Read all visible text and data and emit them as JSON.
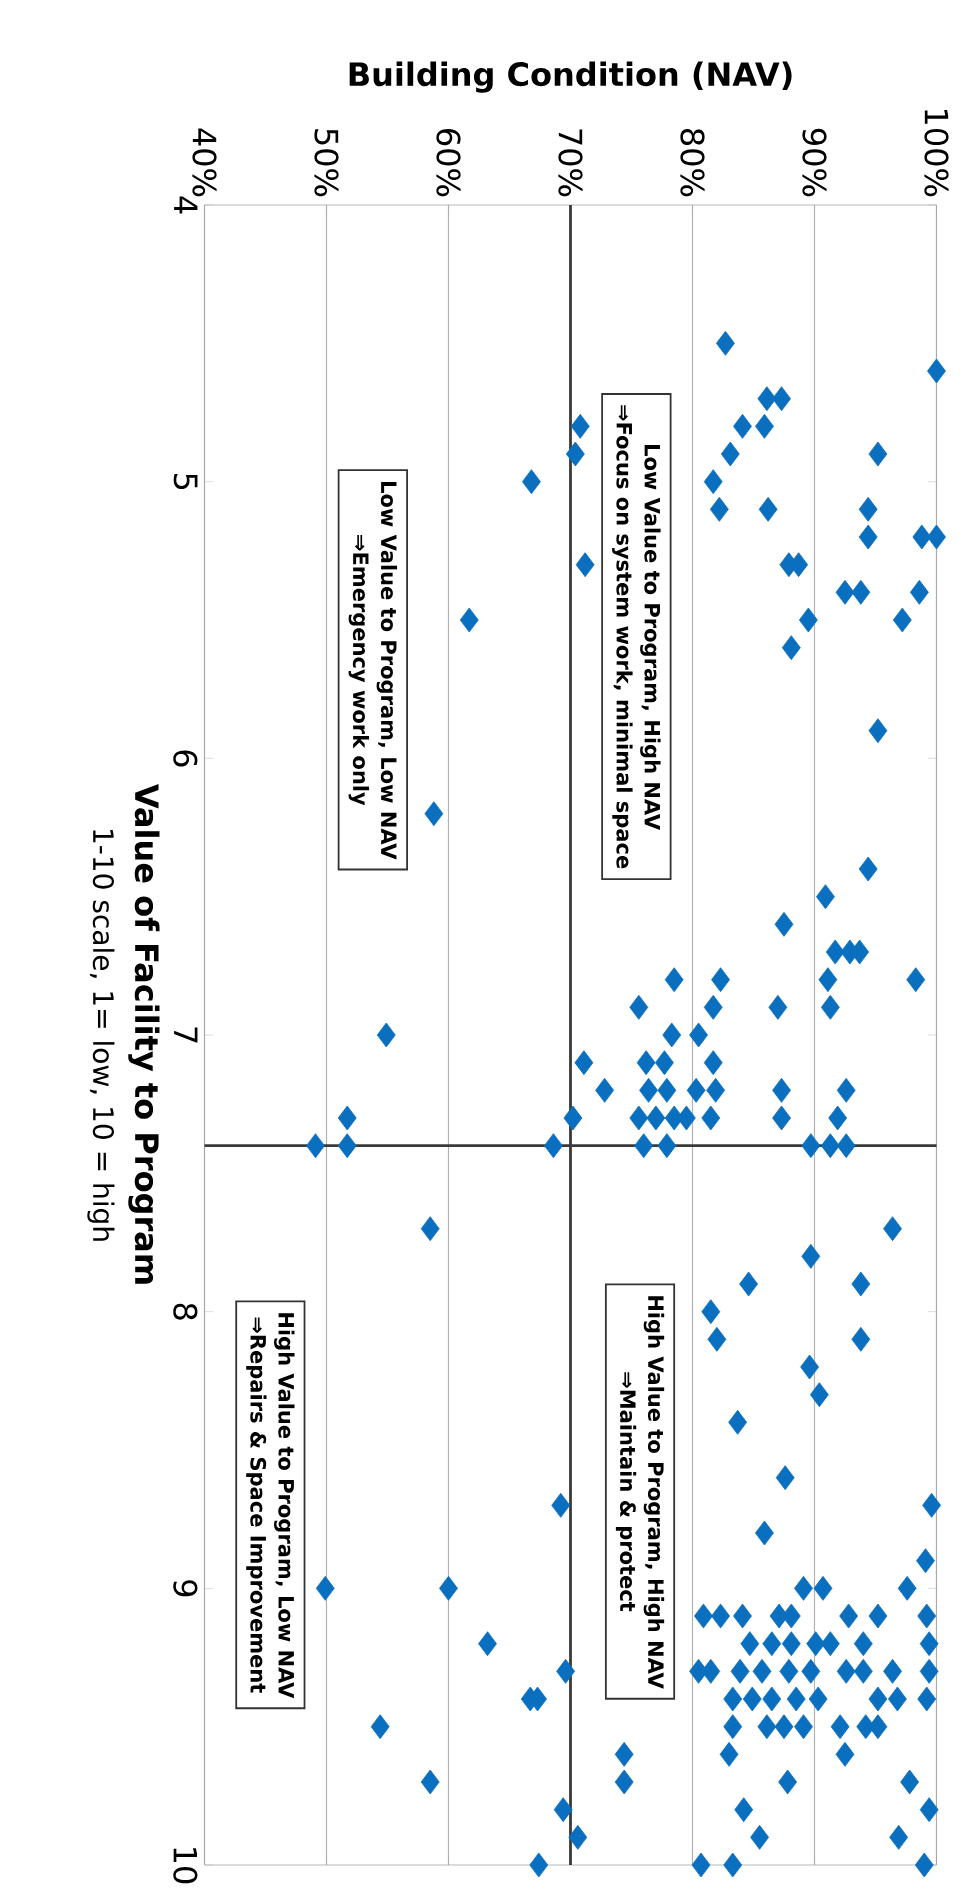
{
  "chart_data": {
    "type": "scatter",
    "xlabel": "Building Condition (NAV)",
    "ylabel": "Value of Facility to Program",
    "values": [
      4.5,
      4.6,
      4.7,
      4.7,
      4.8,
      4.8,
      4.8,
      4.9,
      4.9,
      4.9,
      5.0,
      5.0,
      5.1,
      5.1,
      5.1,
      5.2,
      5.2,
      5.2,
      5.3,
      5.3,
      5.3,
      5.4,
      5.4,
      5.4,
      5.5,
      5.5,
      5.5,
      5.6,
      5.9,
      6.2,
      6.4,
      6.5,
      6.6,
      6.7,
      6.7,
      6.7,
      6.8,
      6.8,
      6.8,
      6.8,
      6.9,
      6.9,
      6.9,
      6.9,
      7.0,
      7.0,
      7.0,
      7.1,
      7.1,
      7.1,
      7.1,
      7.2,
      7.2,
      7.2,
      7.2,
      7.2,
      7.2,
      7.2,
      7.3,
      7.3,
      7.3,
      7.3,
      7.3,
      7.3,
      7.3,
      7.3,
      7.3,
      7.4,
      7.4,
      7.4,
      7.4,
      7.4,
      7.4,
      7.4,
      7.4,
      7.7,
      7.7,
      7.8,
      7.9,
      7.9,
      8.0,
      8.1,
      8.1,
      8.2,
      8.3,
      8.4,
      8.6,
      8.7,
      8.7,
      8.8,
      8.9,
      9.0,
      9.0,
      9.0,
      9.0,
      9.0,
      9.1,
      9.1,
      9.1,
      9.1,
      9.1,
      9.1,
      9.1,
      9.1,
      9.2,
      9.2,
      9.2,
      9.2,
      9.2,
      9.2,
      9.2,
      9.2,
      9.3,
      9.3,
      9.3,
      9.3,
      9.3,
      9.3,
      9.3,
      9.3,
      9.3,
      9.3,
      9.3,
      9.4,
      9.4,
      9.4,
      9.4,
      9.4,
      9.4,
      9.4,
      9.4,
      9.4,
      9.4,
      9.5,
      9.5,
      9.5,
      9.5,
      9.5,
      9.5,
      9.5,
      9.5,
      9.6,
      9.6,
      9.6,
      9.7,
      9.7,
      9.7,
      9.7,
      9.8,
      9.8,
      9.8,
      9.9,
      9.9,
      9.9,
      10.0,
      10.0,
      10.0,
      10.0
    ],
    "x": [
      82.7,
      100.0,
      86.1,
      87.3,
      84.1,
      85.9,
      70.8,
      83.1,
      95.2,
      70.4,
      66.8,
      81.7,
      82.2,
      86.2,
      94.4,
      94.4,
      98.8,
      100.0,
      71.2,
      87.9,
      88.7,
      92.5,
      93.8,
      98.6,
      89.5,
      97.2,
      61.7,
      88.1,
      95.2,
      58.8,
      94.4,
      90.9,
      87.5,
      91.7,
      92.9,
      93.7,
      91.1,
      98.3,
      78.5,
      82.3,
      75.6,
      81.7,
      87.0,
      91.3,
      54.9,
      78.3,
      80.5,
      71.1,
      76.2,
      77.7,
      81.7,
      72.8,
      76.4,
      77.9,
      80.3,
      81.9,
      87.3,
      92.6,
      70.2,
      75.6,
      77.0,
      78.5,
      79.5,
      81.5,
      87.3,
      91.9,
      51.7,
      49.1,
      51.7,
      68.6,
      76.0,
      77.9,
      89.7,
      91.3,
      92.6,
      58.5,
      96.4,
      89.7,
      84.6,
      93.8,
      81.5,
      82.0,
      93.8,
      89.6,
      90.4,
      83.7,
      87.6,
      69.2,
      99.6,
      85.9,
      99.1,
      49.9,
      60.0,
      89.1,
      90.7,
      97.6,
      80.9,
      82.3,
      84.1,
      87.1,
      88.1,
      92.8,
      95.2,
      99.2,
      63.2,
      84.7,
      86.5,
      88.1,
      90.1,
      91.3,
      94.0,
      99.4,
      69.6,
      80.5,
      81.5,
      83.9,
      85.7,
      87.9,
      89.7,
      92.6,
      94.0,
      96.4,
      99.4,
      66.7,
      67.3,
      83.3,
      84.9,
      86.5,
      88.5,
      90.3,
      95.2,
      96.8,
      99.2,
      54.4,
      83.3,
      86.1,
      87.5,
      89.1,
      92.1,
      94.2,
      95.2,
      74.4,
      83.0,
      92.5,
      58.5,
      74.4,
      87.8,
      97.8,
      69.4,
      84.2,
      99.4,
      70.6,
      85.5,
      96.9,
      67.4,
      80.7,
      83.3,
      99.0
    ],
    "color": "#0a6fbf",
    "marker": "diamond",
    "xlim": [
      40,
      100
    ],
    "xticks": [
      {
        "value": 40,
        "label": "40%"
      },
      {
        "value": 50,
        "label": "50%"
      },
      {
        "value": 60,
        "label": "60%"
      },
      {
        "value": 70,
        "label": "70%"
      },
      {
        "value": 80,
        "label": "80%"
      },
      {
        "value": 90,
        "label": "90%"
      },
      {
        "value": 100,
        "label": "100%"
      }
    ],
    "ylim": [
      10,
      4
    ],
    "yticks": [
      4,
      5,
      6,
      7,
      8,
      9,
      10
    ],
    "grid": "x",
    "ref_lines": [
      {
        "axis": "y",
        "value": 7.4,
        "color": "#3a3a3a"
      },
      {
        "axis": "x",
        "value": 70,
        "color": "#3a3a3a"
      }
    ],
    "annotations": [
      "Low Value to Program, High NAV",
      "⇒Focus on system work, minimal space",
      "Low Value to Program, Low NAV",
      "⇒Emergency work only",
      "High Value to Program, High NAV",
      "⇒Maintain & protect",
      "High Value to Program, Low NAV",
      "⇒Repairs & Space Improvement",
      "1-10 scale, 1= low, 10 = high"
    ]
  }
}
